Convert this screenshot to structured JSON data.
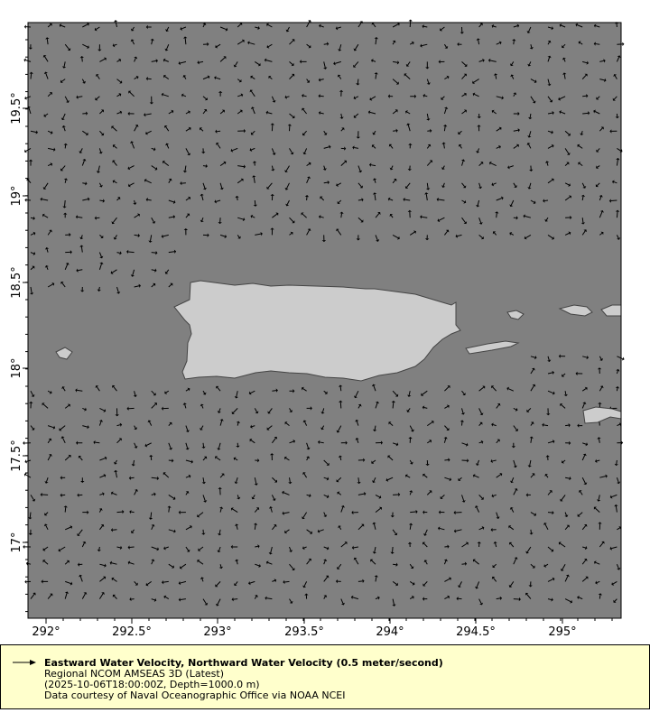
{
  "map": {
    "land_color": "#cccccc",
    "ocean_color": "#808080",
    "vector_color": "#000000",
    "lon_ticks": [
      "292°",
      "292.5°",
      "293°",
      "293.5°",
      "294°",
      "294.5°",
      "295°"
    ],
    "lat_ticks": [
      "19.5°",
      "19°",
      "18.5°",
      "18°",
      "17.5°",
      "17°"
    ],
    "lon_range": [
      291.9,
      295.33
    ],
    "lat_range": [
      16.55,
      19.99
    ]
  },
  "legend": {
    "background": "#ffffcc",
    "title": "Eastward Water Velocity, Northward Water Velocity (0.5 meter/second)",
    "dataset": "Regional NCOM AMSEAS 3D (Latest)",
    "time_depth": "(2025-10-06T18:00:00Z, Depth=1000.0 m)",
    "credit": "Data courtesy of Naval Oceanographic Office via NOAA NCEI"
  }
}
